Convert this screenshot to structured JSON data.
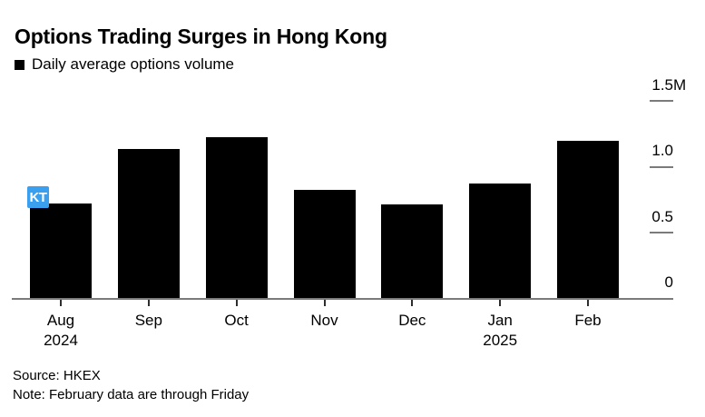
{
  "annotation_badge": {
    "text": "KT",
    "color": "#399fee"
  },
  "footer": {
    "source": "Source: HKEX",
    "note": "Note: February data are through Friday"
  },
  "chart_data": {
    "type": "bar",
    "title": "Options Trading Surges in Hong Kong",
    "legend": "Daily average options volume",
    "legend_position": "top-left",
    "unit": "M",
    "categories": [
      "Aug",
      "Sep",
      "Oct",
      "Nov",
      "Dec",
      "Jan",
      "Feb"
    ],
    "category_sublabels": [
      "2024",
      "",
      "",
      "",
      "",
      "2025",
      ""
    ],
    "values": [
      0.72,
      1.13,
      1.22,
      0.82,
      0.71,
      0.87,
      1.19
    ],
    "ylim": [
      0,
      1.5
    ],
    "y_ticks": [
      {
        "value": 0,
        "label": "0"
      },
      {
        "value": 0.5,
        "label": "0.5"
      },
      {
        "value": 1.0,
        "label": "1.0"
      },
      {
        "value": 1.5,
        "label": "1.5M"
      }
    ],
    "value_axis_side": "right",
    "grid": false,
    "bar_color": "#000000",
    "axis_color": "#7b7b7b"
  }
}
